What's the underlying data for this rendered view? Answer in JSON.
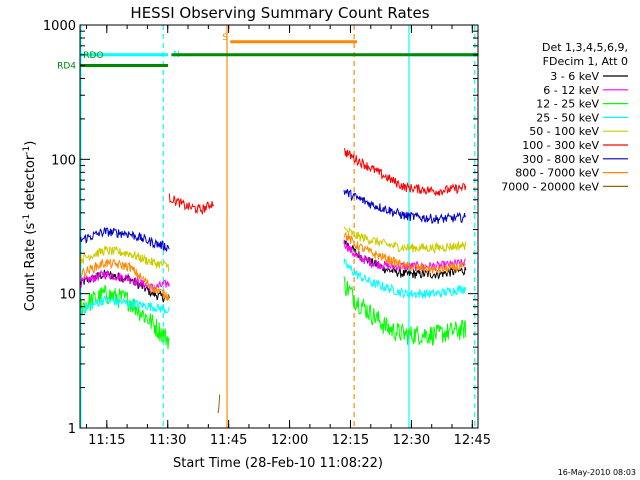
{
  "chart_data": {
    "type": "line",
    "title": "HESSI Observing Summary Count Rates",
    "xlabel": "Start Time (28-Feb-10 11:08:22)",
    "ylabel_main": "Count Rate (s",
    "ylabel_sup1": "-1",
    "ylabel_mid": " detector",
    "ylabel_sup2": "-1",
    "ylabel_end": ")",
    "y_scale": "log",
    "ylim": [
      1,
      1000
    ],
    "xlim_minutes": [
      0,
      98
    ],
    "x_ticks": [
      {
        "label": "11:15",
        "min": 6.6
      },
      {
        "label": "11:30",
        "min": 21.6
      },
      {
        "label": "11:45",
        "min": 36.6
      },
      {
        "label": "12:00",
        "min": 51.6
      },
      {
        "label": "12:15",
        "min": 66.6
      },
      {
        "label": "12:30",
        "min": 81.6
      },
      {
        "label": "12:45",
        "min": 96.6
      }
    ],
    "y_ticks": [
      {
        "label": "1",
        "value": 1
      },
      {
        "label": "10",
        "value": 10
      },
      {
        "label": "100",
        "value": 100
      },
      {
        "label": "1000",
        "value": 1000
      }
    ],
    "legend": {
      "placement": "right",
      "header1": "Det 1,3,4,5,6,9,",
      "header2": "FDecim 1, Att 0"
    },
    "series": [
      {
        "name": "3 - 6 keV",
        "color": "#000000",
        "seg1": [
          [
            0,
            12
          ],
          [
            6,
            14
          ],
          [
            12,
            13
          ],
          [
            18,
            10
          ],
          [
            22,
            9
          ]
        ],
        "seg2": [
          [
            65,
            25
          ],
          [
            68,
            20
          ],
          [
            72,
            17
          ],
          [
            76,
            15
          ],
          [
            80,
            14
          ],
          [
            88,
            14
          ],
          [
            95,
            15
          ]
        ]
      },
      {
        "name": "6 - 12 keV",
        "color": "#ff00ff",
        "seg1": [
          [
            0,
            12
          ],
          [
            6,
            14
          ],
          [
            12,
            13
          ],
          [
            18,
            11
          ],
          [
            22,
            12
          ]
        ],
        "seg2": [
          [
            65,
            24
          ],
          [
            68,
            19
          ],
          [
            72,
            17
          ],
          [
            76,
            16
          ],
          [
            80,
            16
          ],
          [
            88,
            16
          ],
          [
            95,
            17
          ]
        ]
      },
      {
        "name": "12 - 25 keV",
        "color": "#00ff00",
        "seg1": [
          [
            0,
            8
          ],
          [
            6,
            10
          ],
          [
            12,
            9
          ],
          [
            18,
            6
          ],
          [
            22,
            4.5
          ]
        ],
        "seg2": [
          [
            65,
            12
          ],
          [
            68,
            9
          ],
          [
            72,
            7
          ],
          [
            76,
            5.5
          ],
          [
            80,
            5
          ],
          [
            88,
            5
          ],
          [
            95,
            5.5
          ]
        ]
      },
      {
        "name": "25 - 50 keV",
        "color": "#00ffff",
        "seg1": [
          [
            0,
            7.5
          ],
          [
            6,
            9
          ],
          [
            12,
            8.5
          ],
          [
            18,
            8
          ],
          [
            22,
            7.5
          ]
        ],
        "seg2": [
          [
            65,
            17
          ],
          [
            68,
            14
          ],
          [
            72,
            12
          ],
          [
            76,
            11
          ],
          [
            80,
            10
          ],
          [
            88,
            10
          ],
          [
            95,
            11
          ]
        ]
      },
      {
        "name": "50 - 100 keV",
        "color": "#cccc00",
        "seg1": [
          [
            0,
            18
          ],
          [
            6,
            21
          ],
          [
            12,
            20
          ],
          [
            18,
            17
          ],
          [
            22,
            16
          ]
        ],
        "seg2": [
          [
            65,
            30
          ],
          [
            68,
            27
          ],
          [
            72,
            25
          ],
          [
            76,
            23
          ],
          [
            80,
            22
          ],
          [
            88,
            22
          ],
          [
            95,
            23
          ]
        ]
      },
      {
        "name": "100 - 300 keV",
        "color": "#ff0000",
        "seg1": [
          [
            22,
            52
          ],
          [
            26,
            45
          ],
          [
            30,
            42
          ],
          [
            33,
            48
          ]
        ],
        "seg2": [
          [
            65,
            115
          ],
          [
            68,
            100
          ],
          [
            72,
            85
          ],
          [
            76,
            72
          ],
          [
            80,
            62
          ],
          [
            88,
            58
          ],
          [
            95,
            62
          ]
        ]
      },
      {
        "name": "300 - 800 keV",
        "color": "#0000cc",
        "seg1": [
          [
            0,
            25
          ],
          [
            6,
            29
          ],
          [
            12,
            28
          ],
          [
            18,
            24
          ],
          [
            22,
            22
          ]
        ],
        "seg2": [
          [
            65,
            58
          ],
          [
            68,
            52
          ],
          [
            72,
            46
          ],
          [
            76,
            42
          ],
          [
            80,
            38
          ],
          [
            88,
            36
          ],
          [
            95,
            37
          ]
        ]
      },
      {
        "name": "800 - 7000 keV",
        "color": "#ff8800",
        "seg1": [
          [
            0,
            14
          ],
          [
            6,
            17
          ],
          [
            12,
            16
          ],
          [
            18,
            11
          ],
          [
            22,
            9.5
          ]
        ],
        "seg2": [
          [
            65,
            28
          ],
          [
            68,
            23
          ],
          [
            72,
            20
          ],
          [
            76,
            18
          ],
          [
            80,
            16
          ],
          [
            88,
            15
          ],
          [
            95,
            16
          ]
        ]
      },
      {
        "name": "7000 - 20000 keV",
        "color": "#996600",
        "seg1": [
          [
            34,
            1.2
          ],
          [
            34.4,
            1.7
          ]
        ],
        "seg2": []
      }
    ],
    "flags": [
      {
        "label": "N",
        "color": "#00ffff",
        "value": 600,
        "segments": [
          [
            0,
            21.7
          ],
          [
            81.5,
            98
          ]
        ]
      },
      {
        "label": "S",
        "color": "#ff8800",
        "value": 750,
        "segments": [
          [
            37,
            68.2
          ]
        ]
      },
      {
        "label": "RDO",
        "color": "#008800",
        "value": 600,
        "segments": [
          [
            22.5,
            98
          ]
        ]
      },
      {
        "label": "RD4",
        "color": "#008800",
        "value": 500,
        "segments": [
          [
            0,
            21.7
          ]
        ]
      }
    ],
    "vlines": [
      {
        "color": "#00ffff",
        "style": "dashed",
        "min": 20.5
      },
      {
        "color": "#ff8800",
        "style": "solid",
        "min": 36.2
      },
      {
        "color": "#ff8800",
        "style": "dashed",
        "min": 67.5
      },
      {
        "color": "#00ffff",
        "style": "solid",
        "min": 81.0
      },
      {
        "color": "#00ffff",
        "style": "dashed",
        "min": 97.2
      },
      {
        "color": "#00ffff",
        "style": "solid",
        "min": 0.2
      }
    ],
    "footer_timestamp": "16-May-2010 08:03"
  }
}
